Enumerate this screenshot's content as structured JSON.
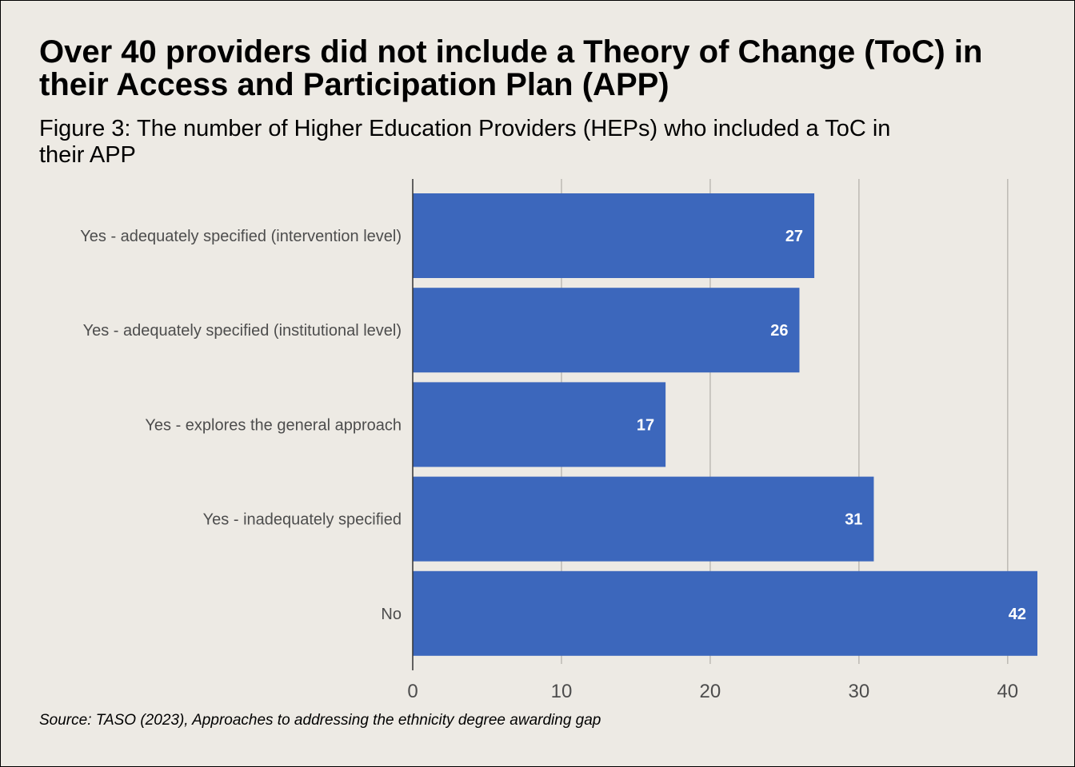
{
  "title": "Over 40 providers did not include a Theory of Change (ToC) in their Access and Participation Plan (APP)",
  "subtitle": "Figure 3: The number of Higher Education Providers (HEPs) who included a ToC in their APP",
  "source": "Source: TASO (2023), Approaches to addressing the ethnicity degree awarding gap",
  "colors": {
    "bar": "#3c67bc",
    "grid": "#bdbab4",
    "axis": "#333333",
    "label": "#4d4d4d",
    "background": "#edeae4"
  },
  "chart_data": {
    "type": "bar",
    "orientation": "horizontal",
    "categories": [
      "Yes - adequately specified (intervention level)",
      "Yes - adequately specified (institutional level)",
      "Yes - explores the general approach",
      "Yes - inadequately specified",
      "No"
    ],
    "values": [
      27,
      26,
      17,
      31,
      42
    ],
    "xlim": [
      0,
      42
    ],
    "xticks": [
      0,
      10,
      20,
      30,
      40
    ],
    "xlabel": "",
    "ylabel": "",
    "grid": true,
    "data_labels": true
  }
}
